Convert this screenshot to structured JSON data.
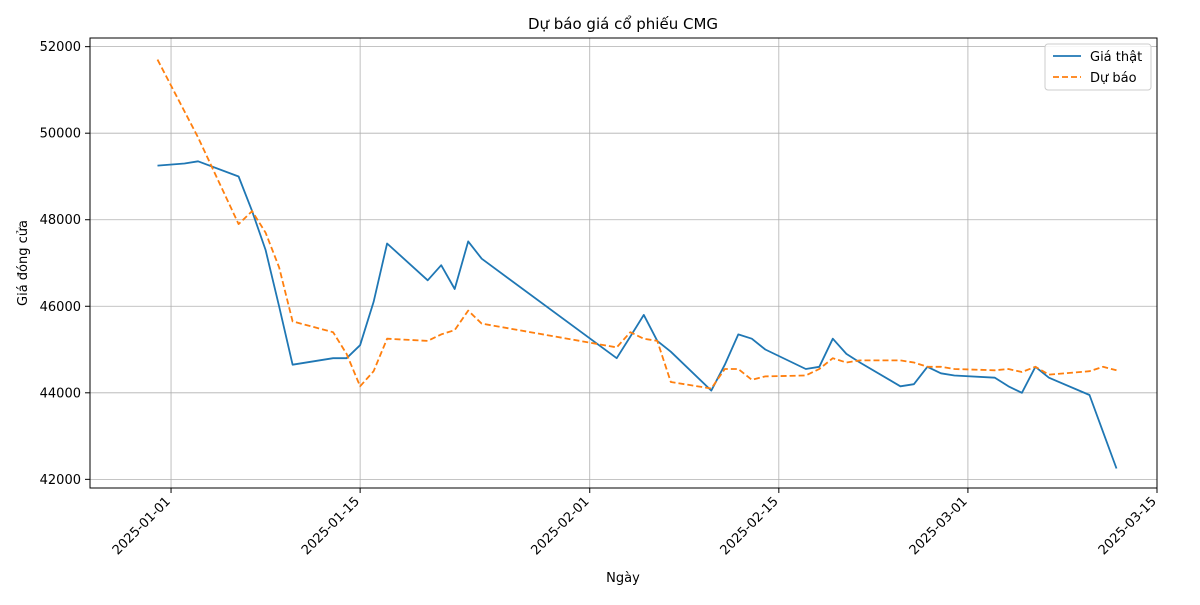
{
  "chart_data": {
    "type": "line",
    "title": "Dự báo giá cổ phiếu CMG",
    "xlabel": "Ngày",
    "ylabel": "Giá đóng cửa",
    "x_axis": {
      "type": "date",
      "range": [
        "2024-12-26",
        "2025-03-15"
      ],
      "ticks": [
        "2025-01-01",
        "2025-01-15",
        "2025-02-01",
        "2025-02-15",
        "2025-03-01",
        "2025-03-15"
      ]
    },
    "y_axis": {
      "range": [
        41800,
        52200
      ],
      "ticks": [
        42000,
        44000,
        46000,
        48000,
        50000,
        52000
      ]
    },
    "grid": true,
    "legend_position": "top-right",
    "series": [
      {
        "name": "Giá thật",
        "color": "#1f77b4",
        "style": "solid",
        "x": [
          "2024-12-31",
          "2025-01-02",
          "2025-01-03",
          "2025-01-06",
          "2025-01-07",
          "2025-01-08",
          "2025-01-09",
          "2025-01-10",
          "2025-01-13",
          "2025-01-14",
          "2025-01-15",
          "2025-01-16",
          "2025-01-17",
          "2025-01-20",
          "2025-01-21",
          "2025-01-22",
          "2025-01-23",
          "2025-01-24",
          "2025-02-03",
          "2025-02-04",
          "2025-02-05",
          "2025-02-06",
          "2025-02-07",
          "2025-02-10",
          "2025-02-11",
          "2025-02-12",
          "2025-02-13",
          "2025-02-14",
          "2025-02-17",
          "2025-02-18",
          "2025-02-19",
          "2025-02-20",
          "2025-02-21",
          "2025-02-24",
          "2025-02-25",
          "2025-02-26",
          "2025-02-27",
          "2025-02-28",
          "2025-03-03",
          "2025-03-04",
          "2025-03-05",
          "2025-03-06",
          "2025-03-07",
          "2025-03-10",
          "2025-03-11",
          "2025-03-12"
        ],
        "y": [
          49250,
          49300,
          49350,
          49000,
          48200,
          47300,
          46000,
          44650,
          44800,
          44800,
          45100,
          46100,
          47450,
          46600,
          46950,
          46400,
          47500,
          47100,
          44800,
          45300,
          45800,
          45200,
          44950,
          44050,
          44650,
          45350,
          45250,
          45000,
          44550,
          44600,
          45250,
          44900,
          44700,
          44150,
          44200,
          44600,
          44450,
          44400,
          44350,
          44150,
          44000,
          44600,
          44350,
          43950,
          43100,
          42250
        ]
      },
      {
        "name": "Dự báo",
        "color": "#ff7f0e",
        "style": "dashed",
        "x": [
          "2024-12-31",
          "2025-01-03",
          "2025-01-06",
          "2025-01-07",
          "2025-01-08",
          "2025-01-09",
          "2025-01-10",
          "2025-01-13",
          "2025-01-14",
          "2025-01-15",
          "2025-01-16",
          "2025-01-17",
          "2025-01-20",
          "2025-01-21",
          "2025-01-22",
          "2025-01-23",
          "2025-01-24",
          "2025-02-03",
          "2025-02-04",
          "2025-02-05",
          "2025-02-06",
          "2025-02-07",
          "2025-02-10",
          "2025-02-11",
          "2025-02-12",
          "2025-02-13",
          "2025-02-14",
          "2025-02-17",
          "2025-02-18",
          "2025-02-19",
          "2025-02-20",
          "2025-02-21",
          "2025-02-24",
          "2025-02-25",
          "2025-02-26",
          "2025-02-27",
          "2025-02-28",
          "2025-03-03",
          "2025-03-04",
          "2025-03-05",
          "2025-03-06",
          "2025-03-07",
          "2025-03-10",
          "2025-03-11",
          "2025-03-12"
        ],
        "y": [
          51700,
          49900,
          47900,
          48200,
          47700,
          46900,
          45650,
          45400,
          44900,
          44150,
          44500,
          45250,
          45200,
          45350,
          45450,
          45900,
          45600,
          45050,
          45400,
          45250,
          45200,
          44250,
          44100,
          44550,
          44550,
          44300,
          44380,
          44400,
          44550,
          44800,
          44700,
          44750,
          44750,
          44700,
          44600,
          44600,
          44550,
          44520,
          44550,
          44480,
          44600,
          44420,
          44500,
          44600,
          44520
        ]
      }
    ]
  }
}
